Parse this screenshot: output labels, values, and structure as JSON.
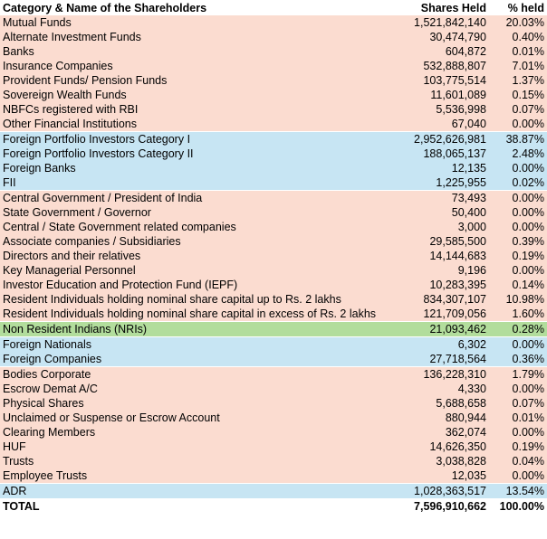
{
  "headers": {
    "category": "Category & Name of the Shareholders",
    "shares": "Shares Held",
    "pct": "% held"
  },
  "colors": {
    "orange": "#fbdcd0",
    "blue": "#c7e5f3",
    "green": "#b2dd9c"
  },
  "rows": [
    {
      "name": "Mutual Funds",
      "shares": "1,521,842,140",
      "pct": "20.03%",
      "group": "orange"
    },
    {
      "name": "Alternate Investment Funds",
      "shares": "30,474,790",
      "pct": "0.40%",
      "group": "orange"
    },
    {
      "name": "Banks",
      "shares": "604,872",
      "pct": "0.01%",
      "group": "orange"
    },
    {
      "name": "Insurance Companies",
      "shares": "532,888,807",
      "pct": "7.01%",
      "group": "orange"
    },
    {
      "name": "Provident Funds/ Pension Funds",
      "shares": "103,775,514",
      "pct": "1.37%",
      "group": "orange"
    },
    {
      "name": "Sovereign Wealth Funds",
      "shares": "11,601,089",
      "pct": "0.15%",
      "group": "orange"
    },
    {
      "name": "NBFCs registered with RBI",
      "shares": "5,536,998",
      "pct": "0.07%",
      "group": "orange"
    },
    {
      "name": "Other Financial Institutions",
      "shares": "67,040",
      "pct": "0.00%",
      "group": "orange"
    },
    {
      "name": "Foreign Portfolio Investors Category I",
      "shares": "2,952,626,981",
      "pct": "38.87%",
      "group": "blue"
    },
    {
      "name": "Foreign Portfolio Investors Category II",
      "shares": "188,065,137",
      "pct": "2.48%",
      "group": "blue"
    },
    {
      "name": "Foreign Banks",
      "shares": "12,135",
      "pct": "0.00%",
      "group": "blue"
    },
    {
      "name": "FII",
      "shares": "1,225,955",
      "pct": "0.02%",
      "group": "blue"
    },
    {
      "name": "Central Government / President of India",
      "shares": "73,493",
      "pct": "0.00%",
      "group": "orange"
    },
    {
      "name": "State Government / Governor",
      "shares": "50,400",
      "pct": "0.00%",
      "group": "orange"
    },
    {
      "name": "Central / State Government related companies",
      "shares": "3,000",
      "pct": "0.00%",
      "group": "orange"
    },
    {
      "name": "Associate companies / Subsidiaries",
      "shares": "29,585,500",
      "pct": "0.39%",
      "group": "orange"
    },
    {
      "name": "Directors and their relatives",
      "shares": "14,144,683",
      "pct": "0.19%",
      "group": "orange"
    },
    {
      "name": "Key Managerial Personnel",
      "shares": "9,196",
      "pct": "0.00%",
      "group": "orange"
    },
    {
      "name": "Investor Education and Protection Fund (IEPF)",
      "shares": "10,283,395",
      "pct": "0.14%",
      "group": "orange"
    },
    {
      "name": "Resident Individuals holding nominal share capital up to Rs. 2 lakhs",
      "shares": "834,307,107",
      "pct": "10.98%",
      "group": "orange"
    },
    {
      "name": "Resident Individuals holding nominal share capital in excess of Rs. 2 lakhs",
      "shares": "121,709,056",
      "pct": "1.60%",
      "group": "orange"
    },
    {
      "name": "Non Resident Indians (NRIs)",
      "shares": "21,093,462",
      "pct": "0.28%",
      "group": "green"
    },
    {
      "name": "Foreign Nationals",
      "shares": "6,302",
      "pct": "0.00%",
      "group": "blue"
    },
    {
      "name": "Foreign Companies",
      "shares": "27,718,564",
      "pct": "0.36%",
      "group": "blue"
    },
    {
      "name": "Bodies Corporate",
      "shares": "136,228,310",
      "pct": "1.79%",
      "group": "orange"
    },
    {
      "name": "Escrow Demat A/C",
      "shares": "4,330",
      "pct": "0.00%",
      "group": "orange"
    },
    {
      "name": "Physical Shares",
      "shares": "5,688,658",
      "pct": "0.07%",
      "group": "orange"
    },
    {
      "name": "Unclaimed or Suspense or Escrow Account",
      "shares": "880,944",
      "pct": "0.01%",
      "group": "orange"
    },
    {
      "name": "Clearing Members",
      "shares": "362,074",
      "pct": "0.00%",
      "group": "orange"
    },
    {
      "name": "HUF",
      "shares": "14,626,350",
      "pct": "0.19%",
      "group": "orange"
    },
    {
      "name": "Trusts",
      "shares": "3,038,828",
      "pct": "0.04%",
      "group": "orange"
    },
    {
      "name": "Employee Trusts",
      "shares": "12,035",
      "pct": "0.00%",
      "group": "orange"
    },
    {
      "name": "ADR",
      "shares": "1,028,363,517",
      "pct": "13.54%",
      "group": "blue"
    }
  ],
  "total": {
    "label": "TOTAL",
    "shares": "7,596,910,662",
    "pct": "100.00%"
  }
}
